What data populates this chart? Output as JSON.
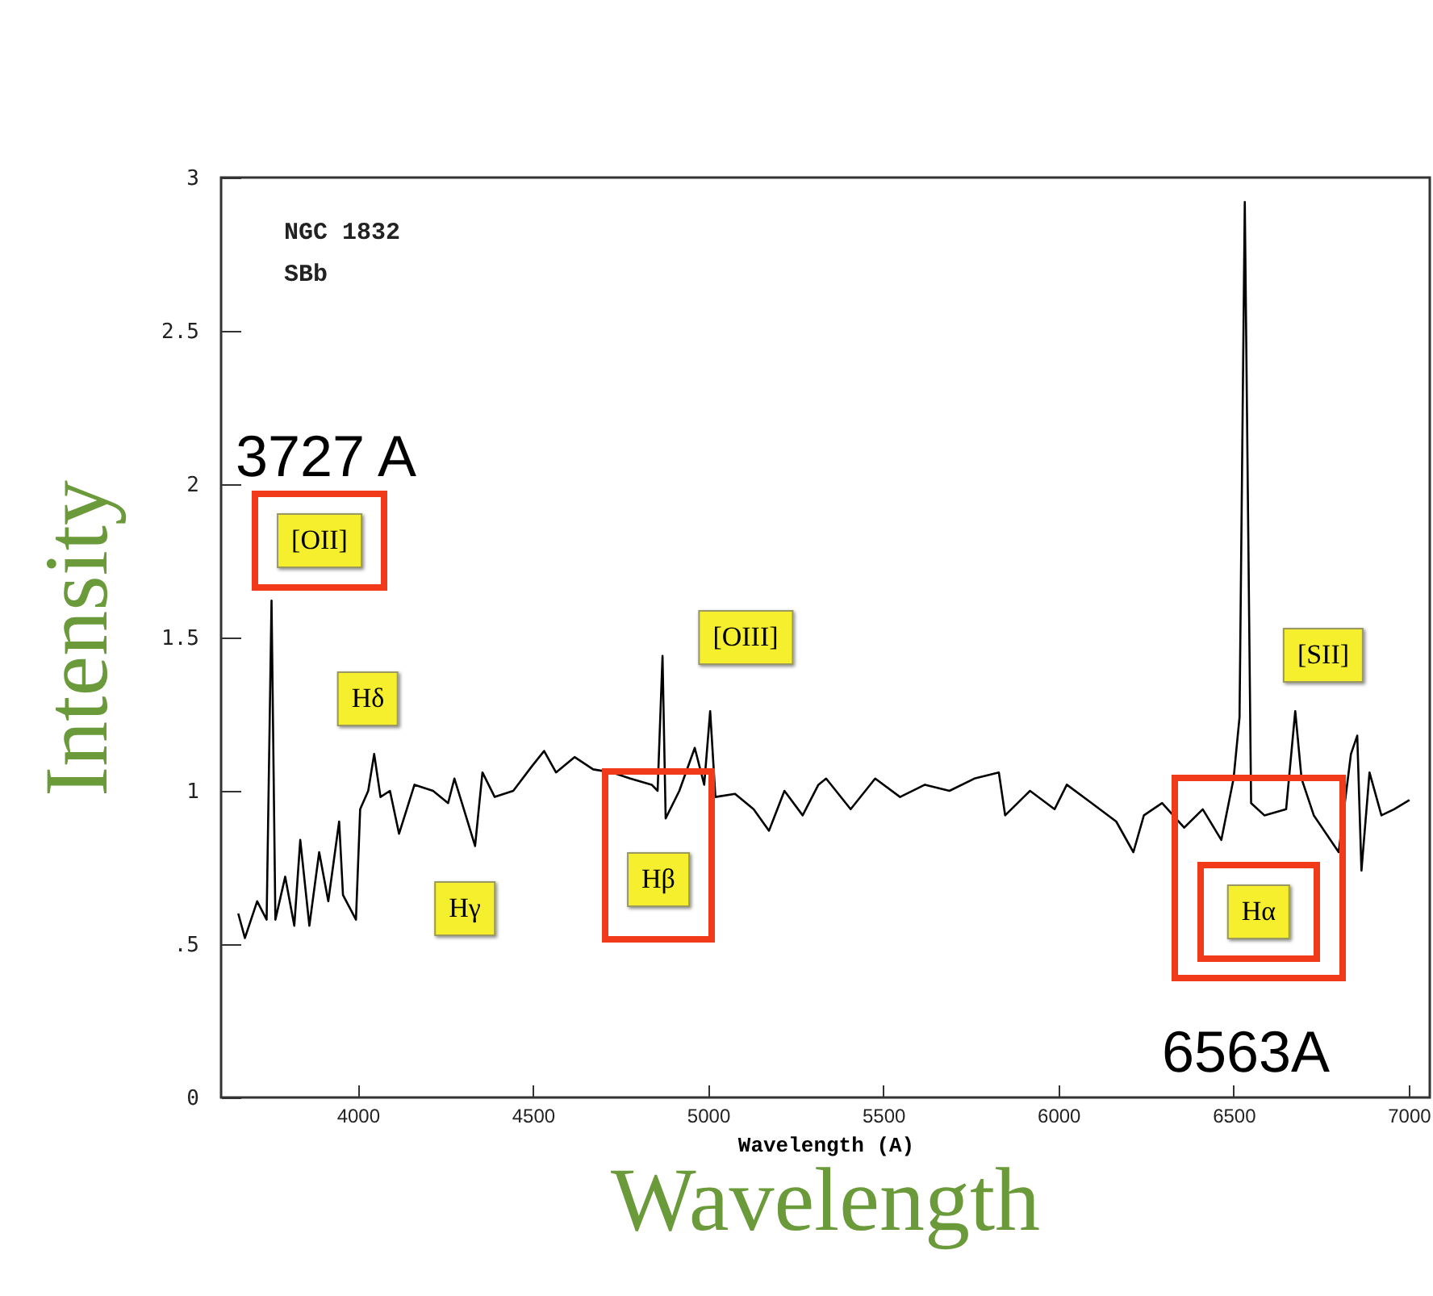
{
  "chart_data": {
    "type": "line",
    "title": "Wavelength",
    "xlabel": "Wavelength (A)",
    "ylabel": "Intensity",
    "x": [
      3659,
      3678,
      3713,
      3740,
      3754,
      3765,
      3793,
      3819,
      3836,
      3862,
      3890,
      3916,
      3947,
      3958,
      3995,
      4007,
      4030,
      4047,
      4065,
      4092,
      4118,
      4162,
      4215,
      4258,
      4276,
      4303,
      4335,
      4356,
      4391,
      4444,
      4497,
      4532,
      4566,
      4619,
      4672,
      4725,
      4778,
      4839,
      4856,
      4870,
      4879,
      4918,
      4962,
      4989,
      5006,
      5021,
      5077,
      5130,
      5174,
      5218,
      5270,
      5315,
      5337,
      5407,
      5477,
      5548,
      5619,
      5689,
      5760,
      5830,
      5848,
      5919,
      5989,
      6024,
      6095,
      6165,
      6214,
      6244,
      6296,
      6359,
      6412,
      6465,
      6500,
      6517,
      6532,
      6543,
      6550,
      6588,
      6650,
      6676,
      6694,
      6729,
      6800,
      6835,
      6853,
      6865,
      6888,
      6922,
      6958,
      7002
    ],
    "series": [
      {
        "color": "#000000",
        "values": [
          0.6,
          0.52,
          0.64,
          0.58,
          1.62,
          0.58,
          0.72,
          0.56,
          0.84,
          0.56,
          0.8,
          0.64,
          0.9,
          0.66,
          0.58,
          0.94,
          1.0,
          1.12,
          0.98,
          1.0,
          0.86,
          1.02,
          1.0,
          0.96,
          1.04,
          0.94,
          0.82,
          1.06,
          0.98,
          1.0,
          1.08,
          1.13,
          1.06,
          1.11,
          1.07,
          1.06,
          1.04,
          1.02,
          1.0,
          1.44,
          0.91,
          1.0,
          1.14,
          1.02,
          1.26,
          0.98,
          0.99,
          0.94,
          0.87,
          1.0,
          0.92,
          1.02,
          1.04,
          0.94,
          1.04,
          0.98,
          1.02,
          1.0,
          1.04,
          1.06,
          0.92,
          1.0,
          0.94,
          1.02,
          0.96,
          0.9,
          0.8,
          0.92,
          0.96,
          0.88,
          0.94,
          0.84,
          1.04,
          1.24,
          2.92,
          1.72,
          0.96,
          0.92,
          0.94,
          1.26,
          1.04,
          0.92,
          0.8,
          1.12,
          1.18,
          0.74,
          1.06,
          0.92,
          0.94,
          0.97
        ]
      }
    ],
    "xlim": [
      3610,
      7060
    ],
    "xticks": [
      4000,
      4500,
      5000,
      5500,
      6000,
      6500,
      7000
    ],
    "ylim": [
      0,
      3
    ],
    "yticks": [
      0,
      {
        "value": 0.5,
        "label": ".5"
      },
      1,
      1.5,
      2,
      2.5,
      3
    ],
    "marker": "none",
    "line_style": "solid",
    "grid": false,
    "annotations": [
      "NGC 1832",
      "SBb",
      "[OII]",
      "Hδ",
      "Hγ",
      "Hβ",
      "[OIII]",
      "Hα",
      "[SII]",
      "3727 A",
      "6563A"
    ]
  }
}
